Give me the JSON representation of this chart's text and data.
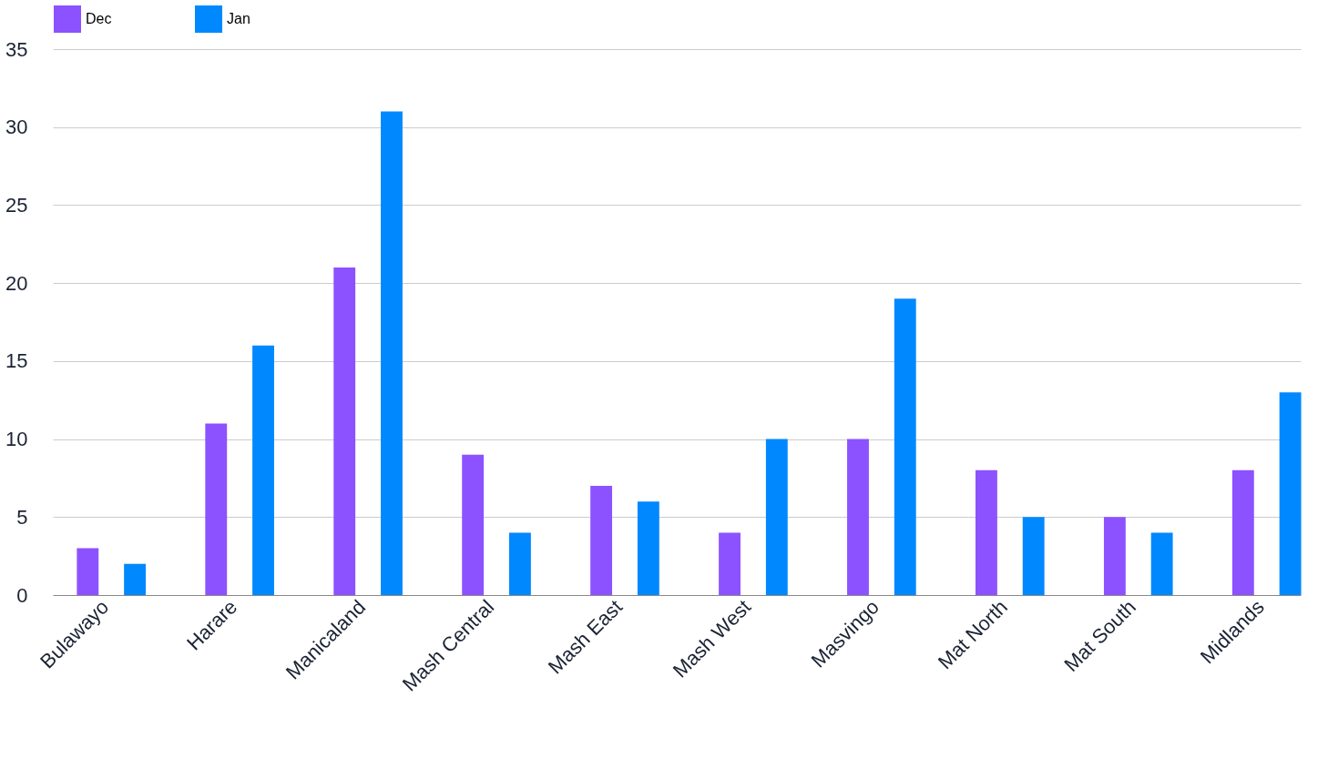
{
  "chart_data": {
    "type": "bar",
    "categories": [
      "Bulawayo",
      "Harare",
      "Manicaland",
      "Mash Central",
      "Mash East",
      "Mash West",
      "Masvingo",
      "Mat North",
      "Mat South",
      "Midlands"
    ],
    "series": [
      {
        "name": "Dec",
        "color": "#8c52ff",
        "values": [
          3,
          11,
          21,
          9,
          7,
          4,
          10,
          8,
          5,
          8
        ]
      },
      {
        "name": "Jan",
        "color": "#0088ff",
        "values": [
          2,
          16,
          31,
          4,
          6,
          10,
          19,
          5,
          4,
          13
        ]
      }
    ],
    "ylim": [
      0,
      35
    ],
    "yticks": [
      0,
      5,
      10,
      15,
      20,
      25,
      30,
      35
    ],
    "grid": "y",
    "legend": "top"
  }
}
